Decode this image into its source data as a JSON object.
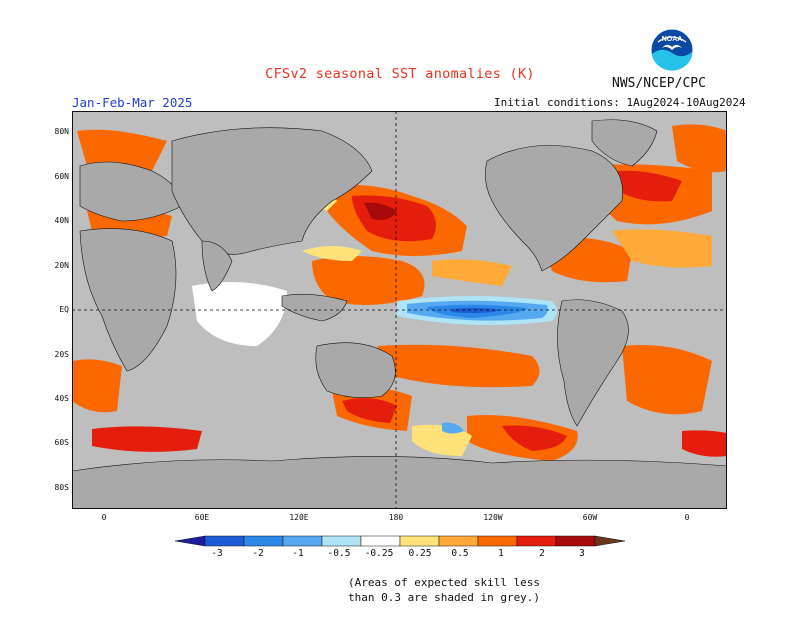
{
  "header": {
    "title": "CFSv2 seasonal SST anomalies (K)",
    "agency": "NWS/NCEP/CPC",
    "logo_text": "NOAA",
    "season": "Jan-Feb-Mar 2025",
    "initial_conditions": "Initial conditions: 1Aug2024-10Aug2024"
  },
  "map": {
    "projection": "equirectangular",
    "land_color": "#a9a9a9",
    "skill_mask_color": "#bebebe",
    "lat_labels": [
      "80N",
      "60N",
      "40N",
      "20N",
      "EQ",
      "20S",
      "40S",
      "60S",
      "80S"
    ],
    "lon_labels": [
      "0",
      "60E",
      "120E",
      "180",
      "120W",
      "60W",
      "0"
    ]
  },
  "legend": {
    "tick_labels": [
      "-3",
      "-2",
      "-1",
      "-0.5",
      "-0.25",
      "0.25",
      "0.5",
      "1",
      "2",
      "3"
    ],
    "colors": [
      "#1d1d9e",
      "#1b5cd6",
      "#2b87e8",
      "#56a9f0",
      "#aee4f5",
      "#ffffff",
      "#ffe27a",
      "#ffa938",
      "#fb6800",
      "#e51d0c",
      "#a70a0a",
      "#6b3520"
    ],
    "footnote_lines": [
      "(Areas of expected skill less",
      "than 0.3 are shaded in grey.)"
    ]
  }
}
